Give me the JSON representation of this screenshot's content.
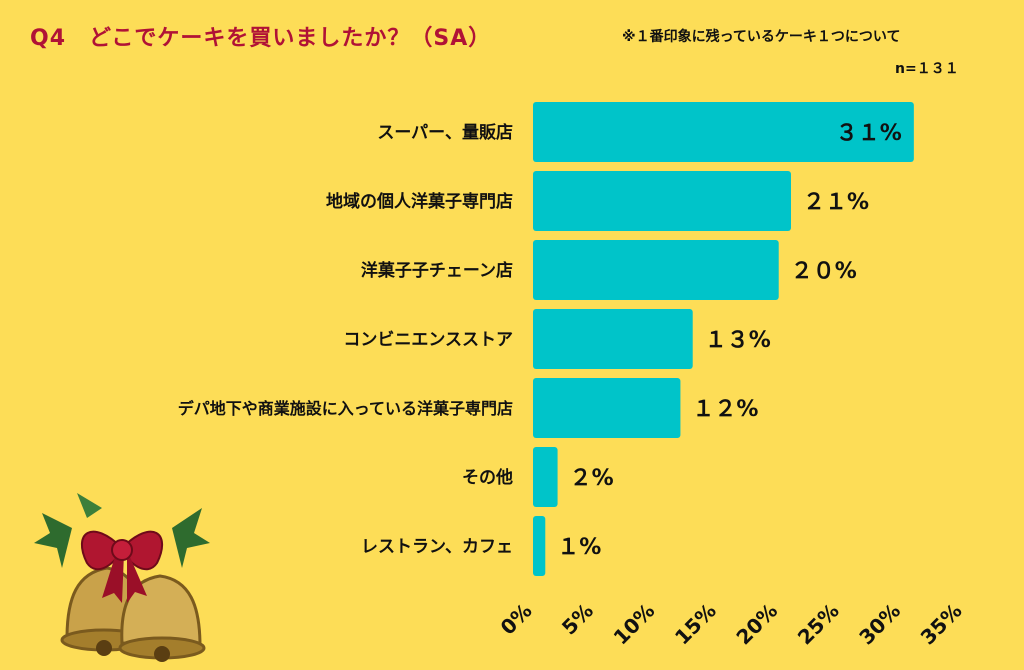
{
  "header": {
    "title": "Q4　どこでケーキを買いましたか？（SA）",
    "note": "※１番印象に残っているケーキ１つについて",
    "n": "n=１３１"
  },
  "colors": {
    "background": "#FDDD57",
    "bar": "#00C4C9",
    "title": "#B01236"
  },
  "decoration": {
    "icon": "christmas-bells-icon"
  },
  "chart_data": {
    "type": "bar",
    "orientation": "horizontal",
    "categories": [
      "スーパー、量販店",
      "地域の個人洋菓子専門店",
      "洋菓子子チェーン店",
      "コンビニエンスストア",
      "デパ地下や商業施設に入っている洋菓子専門店",
      "その他",
      "レストラン、カフェ"
    ],
    "values": [
      31,
      21,
      20,
      13,
      12,
      2,
      1
    ],
    "value_labels": [
      "３１%",
      "２１%",
      "２０%",
      "１３%",
      "１２%",
      "２%",
      "１%"
    ],
    "xlim": [
      0,
      35
    ],
    "ticks": [
      0,
      5,
      10,
      15,
      20,
      25,
      30,
      35
    ],
    "tick_labels": [
      "0%",
      "5%",
      "10%",
      "15%",
      "20%",
      "25%",
      "30%",
      "35%"
    ],
    "grid": false,
    "legend": "none"
  }
}
